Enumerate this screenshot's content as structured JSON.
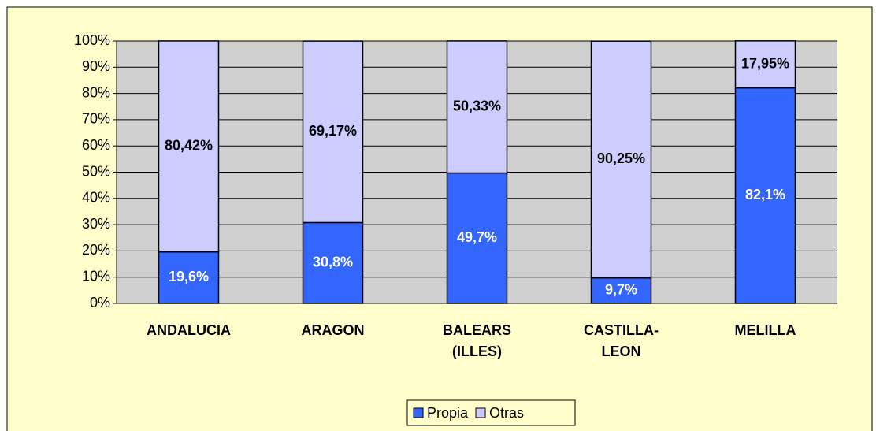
{
  "chart_data": {
    "type": "stacked_bar",
    "categories": [
      "ANDALUCIA",
      "ARAGON",
      "BALEARS (ILLES)",
      "CASTILLA-LEON",
      "MELILLA"
    ],
    "series": [
      {
        "name": "Propia",
        "color": "#3366ff",
        "values": [
          19.6,
          30.8,
          49.7,
          9.7,
          82.1
        ],
        "value_labels": [
          "19,6%",
          "30,8%",
          "49,7%",
          "9,7%",
          "82,1%"
        ]
      },
      {
        "name": "Otras",
        "color": "#ccccff",
        "values": [
          80.42,
          69.17,
          50.33,
          90.25,
          17.95
        ],
        "value_labels": [
          "80,42%",
          "69,17%",
          "50,33%",
          "90,25%",
          "17,95%"
        ]
      }
    ],
    "ylim": [
      0,
      100
    ],
    "yticks": [
      {
        "value": 0,
        "label": "0%"
      },
      {
        "value": 10,
        "label": "10%"
      },
      {
        "value": 20,
        "label": "20%"
      },
      {
        "value": 30,
        "label": "30%"
      },
      {
        "value": 40,
        "label": "40%"
      },
      {
        "value": 50,
        "label": "50%"
      },
      {
        "value": 60,
        "label": "60%"
      },
      {
        "value": 70,
        "label": "70%"
      },
      {
        "value": 80,
        "label": "80%"
      },
      {
        "value": 90,
        "label": "90%"
      },
      {
        "value": 100,
        "label": "100%"
      }
    ],
    "grid": true,
    "legend": "bottom"
  }
}
